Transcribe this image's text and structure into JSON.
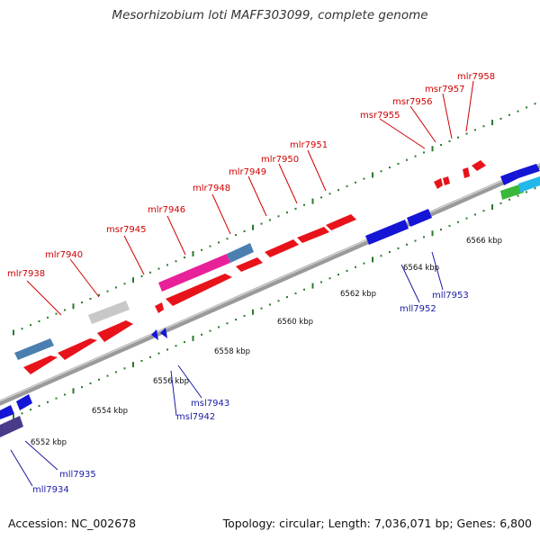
{
  "title": "Mesorhizobium loti MAFF303099, complete genome",
  "footer": {
    "accession": "Accession: NC_002678",
    "summary": "Topology: circular; Length: 7,036,071 bp; Genes: 6,800"
  },
  "colors": {
    "forward_gene": "#e8131a",
    "reverse_gene": "#1515d6",
    "pink_feature": "#e8209a",
    "steel_feature": "#4a7fb0",
    "gray_feature": "#c8c8c8",
    "purple_feature": "#4a3a8a",
    "green_feature": "#3ab83a",
    "cyan_feature": "#22b8e8",
    "tick": "#2a7a2a",
    "backbone": "#888888"
  },
  "scale_labels": [
    "6552 kbp",
    "6554 kbp",
    "6556 kbp",
    "6558 kbp",
    "6560 kbp",
    "6562 kbp",
    "6564 kbp",
    "6566 kbp"
  ],
  "forward_labels": [
    "mlr7938",
    "mlr7940",
    "msr7945",
    "mlr7946",
    "mlr7948",
    "mlr7949",
    "mlr7950",
    "mlr7951",
    "msr7955",
    "msr7956",
    "msr7957",
    "mlr7958"
  ],
  "reverse_labels": [
    "mll7934",
    "mll7935",
    "msl7942",
    "msl7943",
    "mll7952",
    "mll7953"
  ]
}
